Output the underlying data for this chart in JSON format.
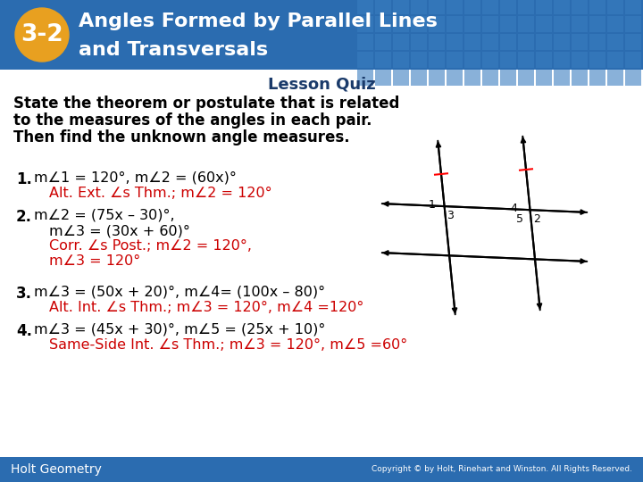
{
  "header_bg_color": "#2b6cb0",
  "header_text_line1": "Angles Formed by Parallel Lines",
  "header_text_line2": "and Transversals",
  "header_text_color": "#ffffff",
  "badge_text": "3-2",
  "badge_bg": "#e8a020",
  "badge_text_color": "#ffffff",
  "lesson_quiz_text": "Lesson Quiz",
  "lesson_quiz_color": "#1a3a6a",
  "intro_lines": [
    "State the theorem or postulate that is related",
    "to the measures of the angles in each pair.",
    "Then find the unknown angle measures."
  ],
  "intro_color": "#000000",
  "footer_bg": "#2b6cb0",
  "footer_left": "Holt Geometry",
  "footer_right": "Copyright © by Holt, Rinehart and Winston. All Rights Reserved.",
  "footer_text_color": "#ffffff",
  "bg_color": "#ffffff",
  "red_color": "#cc0000",
  "black_color": "#000000",
  "grid_color": "#3a7dc0"
}
